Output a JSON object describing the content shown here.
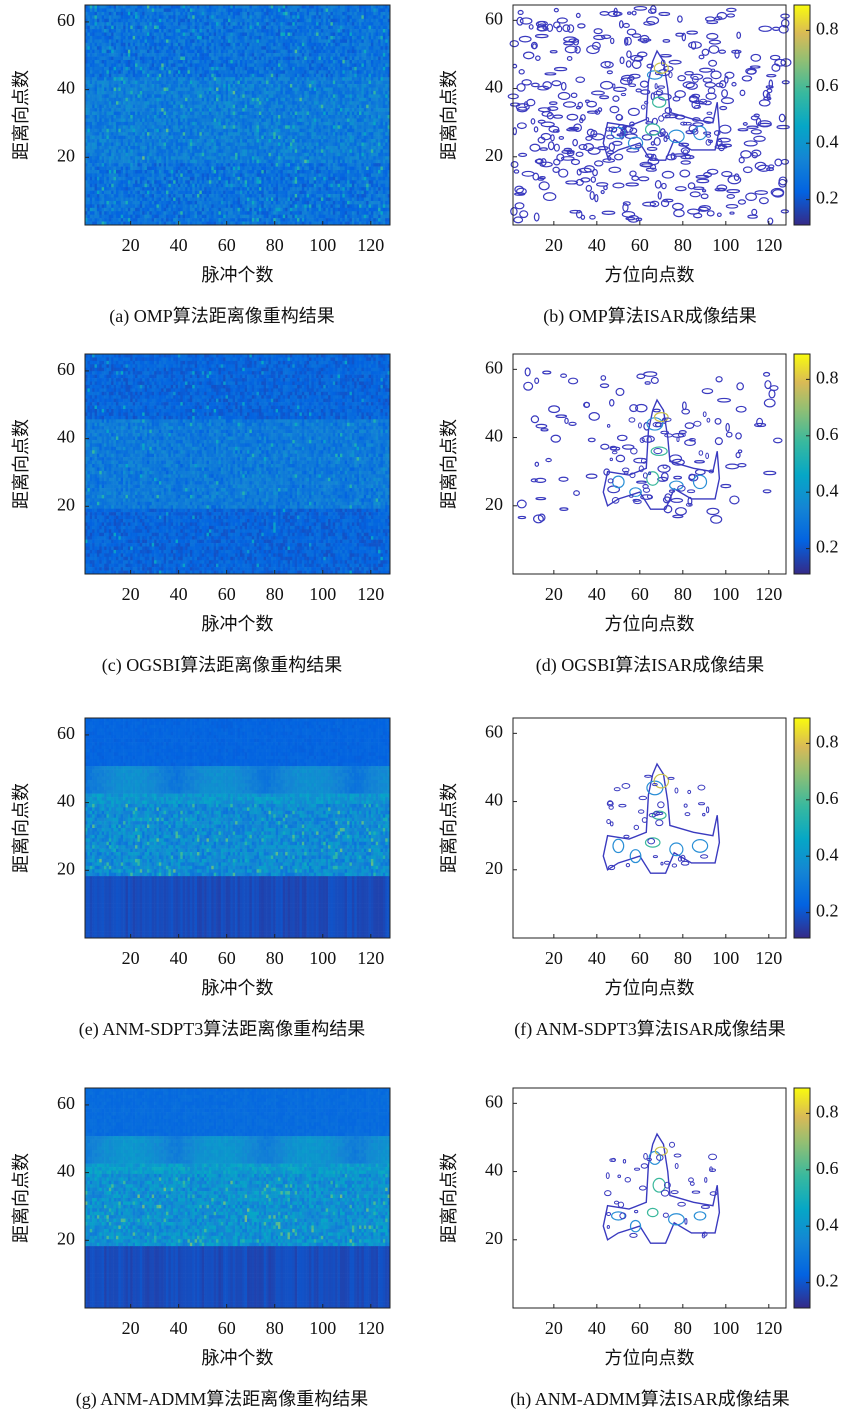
{
  "chart_data": [
    {
      "type": "heatmap",
      "caption": "(a) OMP算法距离像重构结果",
      "xlabel": "脉冲个数",
      "ylabel": "距离向点数",
      "xlim": [
        1,
        128
      ],
      "ylim": [
        0,
        65
      ],
      "xticks": [
        20,
        40,
        60,
        80,
        100,
        120
      ],
      "yticks": [
        20,
        40,
        60
      ]
    },
    {
      "type": "contour",
      "caption": "(b) OMP算法ISAR成像结果",
      "xlabel": "方位向点数",
      "ylabel": "距离向点数",
      "xlim": [
        1,
        128
      ],
      "ylim": [
        0,
        64.5
      ],
      "xticks": [
        20,
        40,
        60,
        80,
        100,
        120
      ],
      "yticks": [
        20,
        40,
        60
      ],
      "clim": [
        0.11,
        0.89
      ],
      "cticks": [
        0.2,
        0.4,
        0.6,
        0.8
      ]
    },
    {
      "type": "heatmap",
      "caption": "(c) OGSBI算法距离像重构结果",
      "xlabel": "脉冲个数",
      "ylabel": "距离向点数",
      "xlim": [
        1,
        128
      ],
      "ylim": [
        0,
        65
      ],
      "xticks": [
        20,
        40,
        60,
        80,
        100,
        120
      ],
      "yticks": [
        20,
        40,
        60
      ]
    },
    {
      "type": "contour",
      "caption": "(d) OGSBI算法ISAR成像结果",
      "xlabel": "方位向点数",
      "ylabel": "距离向点数",
      "xlim": [
        1,
        128
      ],
      "ylim": [
        0,
        64.5
      ],
      "xticks": [
        20,
        40,
        60,
        80,
        100,
        120
      ],
      "yticks": [
        20,
        40,
        60
      ],
      "clim": [
        0.11,
        0.89
      ],
      "cticks": [
        0.2,
        0.4,
        0.6,
        0.8
      ]
    },
    {
      "type": "heatmap",
      "caption": "(e) ANM-SDPT3算法距离像重构结果",
      "xlabel": "脉冲个数",
      "ylabel": "距离向点数",
      "xlim": [
        1,
        128
      ],
      "ylim": [
        0,
        65
      ],
      "xticks": [
        20,
        40,
        60,
        80,
        100,
        120
      ],
      "yticks": [
        20,
        40,
        60
      ]
    },
    {
      "type": "contour",
      "caption": "(f) ANM-SDPT3算法ISAR成像结果",
      "xlabel": "方位向点数",
      "ylabel": "距离向点数",
      "xlim": [
        1,
        128
      ],
      "ylim": [
        0,
        64.5
      ],
      "xticks": [
        20,
        40,
        60,
        80,
        100,
        120
      ],
      "yticks": [
        20,
        40,
        60
      ],
      "clim": [
        0.11,
        0.89
      ],
      "cticks": [
        0.2,
        0.4,
        0.6,
        0.8
      ]
    },
    {
      "type": "heatmap",
      "caption": "(g) ANM-ADMM算法距离像重构结果",
      "xlabel": "脉冲个数",
      "ylabel": "距离向点数",
      "xlim": [
        1,
        128
      ],
      "ylim": [
        0,
        65
      ],
      "xticks": [
        20,
        40,
        60,
        80,
        100,
        120
      ],
      "yticks": [
        20,
        40,
        60
      ]
    },
    {
      "type": "contour",
      "caption": "(h) ANM-ADMM算法ISAR成像结果",
      "xlabel": "方位向点数",
      "ylabel": "距离向点数",
      "xlim": [
        1,
        128
      ],
      "ylim": [
        0,
        64.5
      ],
      "xticks": [
        20,
        40,
        60,
        80,
        100,
        120
      ],
      "yticks": [
        20,
        40,
        60
      ],
      "clim": [
        0.11,
        0.89
      ],
      "cticks": [
        0.2,
        0.4,
        0.6,
        0.8
      ]
    }
  ]
}
